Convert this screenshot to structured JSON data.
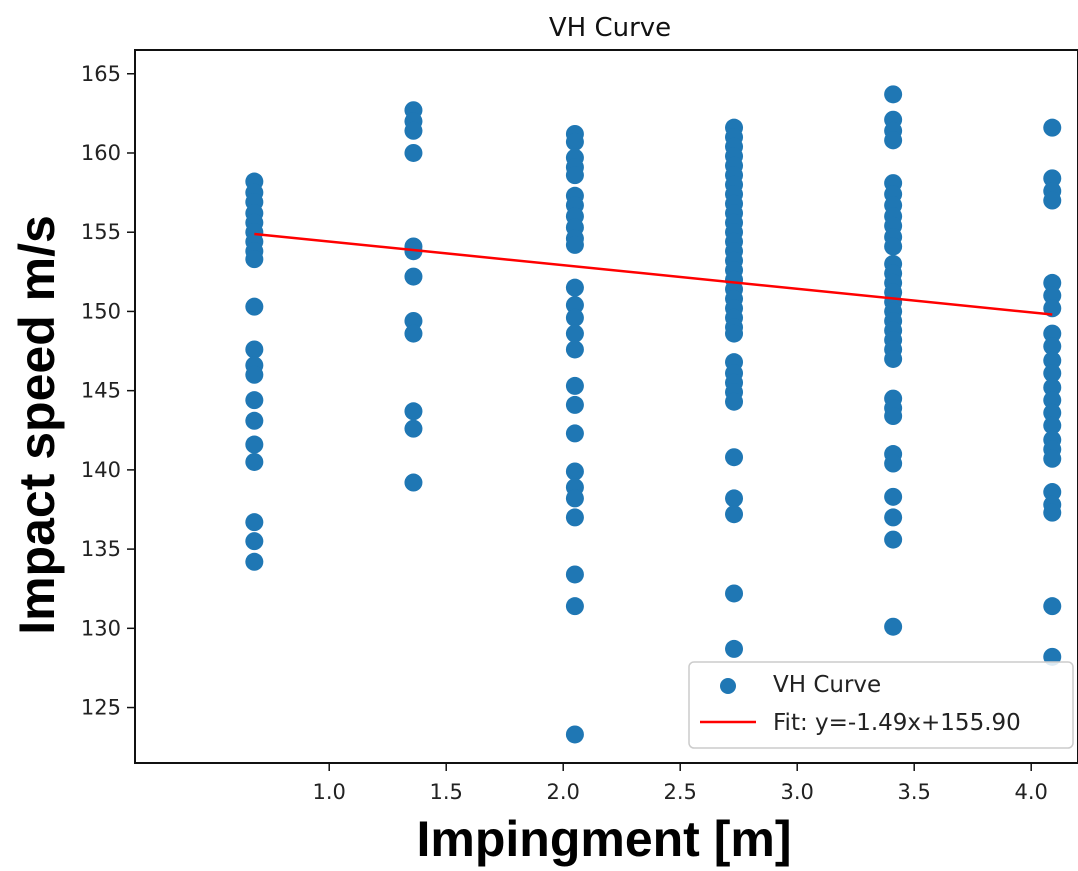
{
  "chart_data": {
    "type": "scatter",
    "title": "VH Curve",
    "xlabel": "Impingment [m]",
    "ylabel": "Impact speed m/s",
    "xlim": [
      0.17,
      4.2
    ],
    "ylim": [
      121.5,
      166.5
    ],
    "x_ticks": [
      "1.0",
      "1.5",
      "2.0",
      "2.5",
      "3.0",
      "3.5",
      "4.0"
    ],
    "x_tick_values": [
      1.0,
      1.5,
      2.0,
      2.5,
      3.0,
      3.5,
      4.0
    ],
    "y_ticks": [
      "125",
      "130",
      "135",
      "140",
      "145",
      "150",
      "155",
      "160",
      "165"
    ],
    "y_tick_values": [
      125,
      130,
      135,
      140,
      145,
      150,
      155,
      160,
      165
    ],
    "grid": false,
    "legend_position": "lower-right",
    "series": [
      {
        "name": "VH Curve",
        "kind": "scatter",
        "color": "#1f77b4",
        "points": [
          [
            0.68,
            158.2
          ],
          [
            0.68,
            157.5
          ],
          [
            0.68,
            156.9
          ],
          [
            0.68,
            156.2
          ],
          [
            0.68,
            155.6
          ],
          [
            0.68,
            155.0
          ],
          [
            0.68,
            154.4
          ],
          [
            0.68,
            153.8
          ],
          [
            0.68,
            153.3
          ],
          [
            0.68,
            150.3
          ],
          [
            0.68,
            147.6
          ],
          [
            0.68,
            146.6
          ],
          [
            0.68,
            146.0
          ],
          [
            0.68,
            144.4
          ],
          [
            0.68,
            143.1
          ],
          [
            0.68,
            141.6
          ],
          [
            0.68,
            140.5
          ],
          [
            0.68,
            136.7
          ],
          [
            0.68,
            135.5
          ],
          [
            0.68,
            134.2
          ],
          [
            1.36,
            162.7
          ],
          [
            1.36,
            162.0
          ],
          [
            1.36,
            161.4
          ],
          [
            1.36,
            160.0
          ],
          [
            1.36,
            154.1
          ],
          [
            1.36,
            153.8
          ],
          [
            1.36,
            152.2
          ],
          [
            1.36,
            149.4
          ],
          [
            1.36,
            148.6
          ],
          [
            1.36,
            143.7
          ],
          [
            1.36,
            142.6
          ],
          [
            1.36,
            139.2
          ],
          [
            2.05,
            161.2
          ],
          [
            2.05,
            160.7
          ],
          [
            2.05,
            159.7
          ],
          [
            2.05,
            159.1
          ],
          [
            2.05,
            158.6
          ],
          [
            2.05,
            157.3
          ],
          [
            2.05,
            156.7
          ],
          [
            2.05,
            156.0
          ],
          [
            2.05,
            155.3
          ],
          [
            2.05,
            154.6
          ],
          [
            2.05,
            154.2
          ],
          [
            2.05,
            151.5
          ],
          [
            2.05,
            150.4
          ],
          [
            2.05,
            149.6
          ],
          [
            2.05,
            148.6
          ],
          [
            2.05,
            147.6
          ],
          [
            2.05,
            145.3
          ],
          [
            2.05,
            144.1
          ],
          [
            2.05,
            142.3
          ],
          [
            2.05,
            139.9
          ],
          [
            2.05,
            138.9
          ],
          [
            2.05,
            138.2
          ],
          [
            2.05,
            137.0
          ],
          [
            2.05,
            133.4
          ],
          [
            2.05,
            131.4
          ],
          [
            2.05,
            123.3
          ],
          [
            2.73,
            161.6
          ],
          [
            2.73,
            161.0
          ],
          [
            2.73,
            160.4
          ],
          [
            2.73,
            159.8
          ],
          [
            2.73,
            159.2
          ],
          [
            2.73,
            158.6
          ],
          [
            2.73,
            158.0
          ],
          [
            2.73,
            157.4
          ],
          [
            2.73,
            156.8
          ],
          [
            2.73,
            156.2
          ],
          [
            2.73,
            155.6
          ],
          [
            2.73,
            155.0
          ],
          [
            2.73,
            154.4
          ],
          [
            2.73,
            153.8
          ],
          [
            2.73,
            153.2
          ],
          [
            2.73,
            152.6
          ],
          [
            2.73,
            152.0
          ],
          [
            2.73,
            151.4
          ],
          [
            2.73,
            150.8
          ],
          [
            2.73,
            150.2
          ],
          [
            2.73,
            149.6
          ],
          [
            2.73,
            149.0
          ],
          [
            2.73,
            148.6
          ],
          [
            2.73,
            146.8
          ],
          [
            2.73,
            146.1
          ],
          [
            2.73,
            145.5
          ],
          [
            2.73,
            144.9
          ],
          [
            2.73,
            144.3
          ],
          [
            2.73,
            140.8
          ],
          [
            2.73,
            138.2
          ],
          [
            2.73,
            137.2
          ],
          [
            2.73,
            132.2
          ],
          [
            2.73,
            128.7
          ],
          [
            3.41,
            163.7
          ],
          [
            3.41,
            162.1
          ],
          [
            3.41,
            161.4
          ],
          [
            3.41,
            160.8
          ],
          [
            3.41,
            158.1
          ],
          [
            3.41,
            157.4
          ],
          [
            3.41,
            156.7
          ],
          [
            3.41,
            156.0
          ],
          [
            3.41,
            155.4
          ],
          [
            3.41,
            154.7
          ],
          [
            3.41,
            154.1
          ],
          [
            3.41,
            153.0
          ],
          [
            3.41,
            152.4
          ],
          [
            3.41,
            151.8
          ],
          [
            3.41,
            151.2
          ],
          [
            3.41,
            150.6
          ],
          [
            3.41,
            150.0
          ],
          [
            3.41,
            149.4
          ],
          [
            3.41,
            148.8
          ],
          [
            3.41,
            148.2
          ],
          [
            3.41,
            147.6
          ],
          [
            3.41,
            147.0
          ],
          [
            3.41,
            144.5
          ],
          [
            3.41,
            143.9
          ],
          [
            3.41,
            143.4
          ],
          [
            3.41,
            141.0
          ],
          [
            3.41,
            140.4
          ],
          [
            3.41,
            138.3
          ],
          [
            3.41,
            137.0
          ],
          [
            3.41,
            135.6
          ],
          [
            3.41,
            130.1
          ],
          [
            4.09,
            161.6
          ],
          [
            4.09,
            158.4
          ],
          [
            4.09,
            157.6
          ],
          [
            4.09,
            157.0
          ],
          [
            4.09,
            151.8
          ],
          [
            4.09,
            151.0
          ],
          [
            4.09,
            150.2
          ],
          [
            4.09,
            148.6
          ],
          [
            4.09,
            147.8
          ],
          [
            4.09,
            146.9
          ],
          [
            4.09,
            146.1
          ],
          [
            4.09,
            145.2
          ],
          [
            4.09,
            144.4
          ],
          [
            4.09,
            143.6
          ],
          [
            4.09,
            142.8
          ],
          [
            4.09,
            141.9
          ],
          [
            4.09,
            141.3
          ],
          [
            4.09,
            140.7
          ],
          [
            4.09,
            138.6
          ],
          [
            4.09,
            137.8
          ],
          [
            4.09,
            137.3
          ],
          [
            4.09,
            131.4
          ],
          [
            4.09,
            128.2
          ]
        ]
      },
      {
        "name": "Fit: y=-1.49x+155.90",
        "kind": "line",
        "color": "#ff0000",
        "slope": -1.49,
        "intercept": 155.9,
        "x_range": [
          0.68,
          4.09
        ]
      }
    ]
  }
}
